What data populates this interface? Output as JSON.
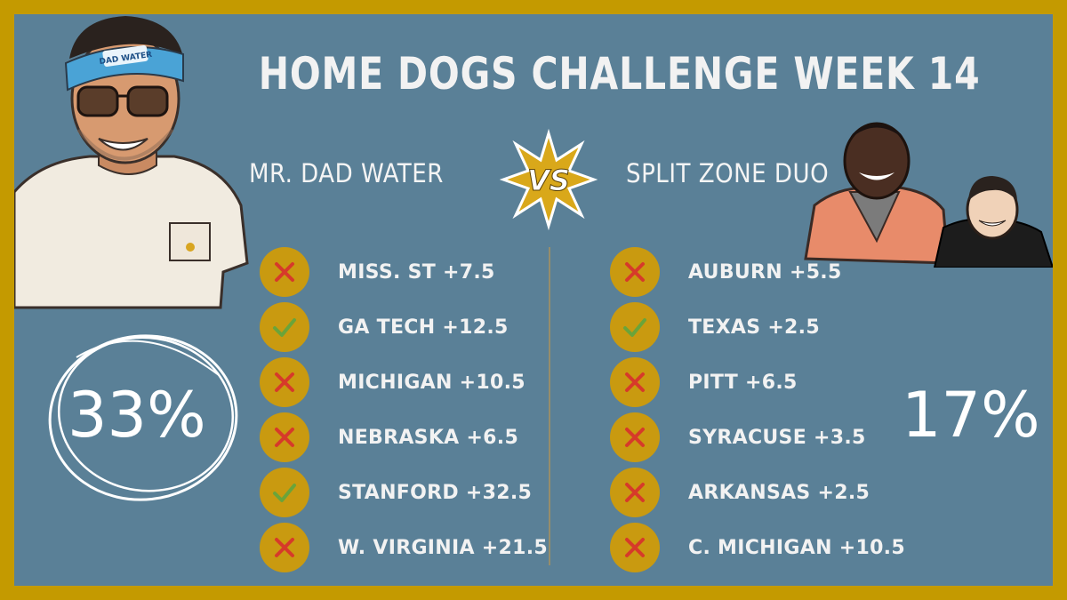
{
  "title": "HOME DOGS CHALLENGE WEEK 14",
  "vs_label": "VS",
  "left": {
    "name": "MR. DAD WATER",
    "headband_text": "DAD WATER",
    "percentage": "33%",
    "picks": [
      {
        "label": "MISS. ST +7.5",
        "result": "loss"
      },
      {
        "label": "GA TECH +12.5",
        "result": "win"
      },
      {
        "label": "MICHIGAN +10.5",
        "result": "loss"
      },
      {
        "label": "NEBRASKA +6.5",
        "result": "loss"
      },
      {
        "label": "STANFORD +32.5",
        "result": "win"
      },
      {
        "label": "W. VIRGINIA +21.5",
        "result": "loss"
      }
    ]
  },
  "right": {
    "name": "SPLIT ZONE DUO",
    "percentage": "17%",
    "picks": [
      {
        "label": "AUBURN +5.5",
        "result": "loss"
      },
      {
        "label": "TEXAS +2.5",
        "result": "win"
      },
      {
        "label": "PITT +6.5",
        "result": "loss"
      },
      {
        "label": "SYRACUSE +3.5",
        "result": "loss"
      },
      {
        "label": "ARKANSAS +2.5",
        "result": "loss"
      },
      {
        "label": "C. MICHIGAN +10.5",
        "result": "loss"
      }
    ]
  },
  "colors": {
    "frame": "#c49a00",
    "background": "#5a8097",
    "badge": "#c99a10",
    "loss": "#d63a2a",
    "win": "#6aa43a",
    "text": "#f2f2f2"
  }
}
